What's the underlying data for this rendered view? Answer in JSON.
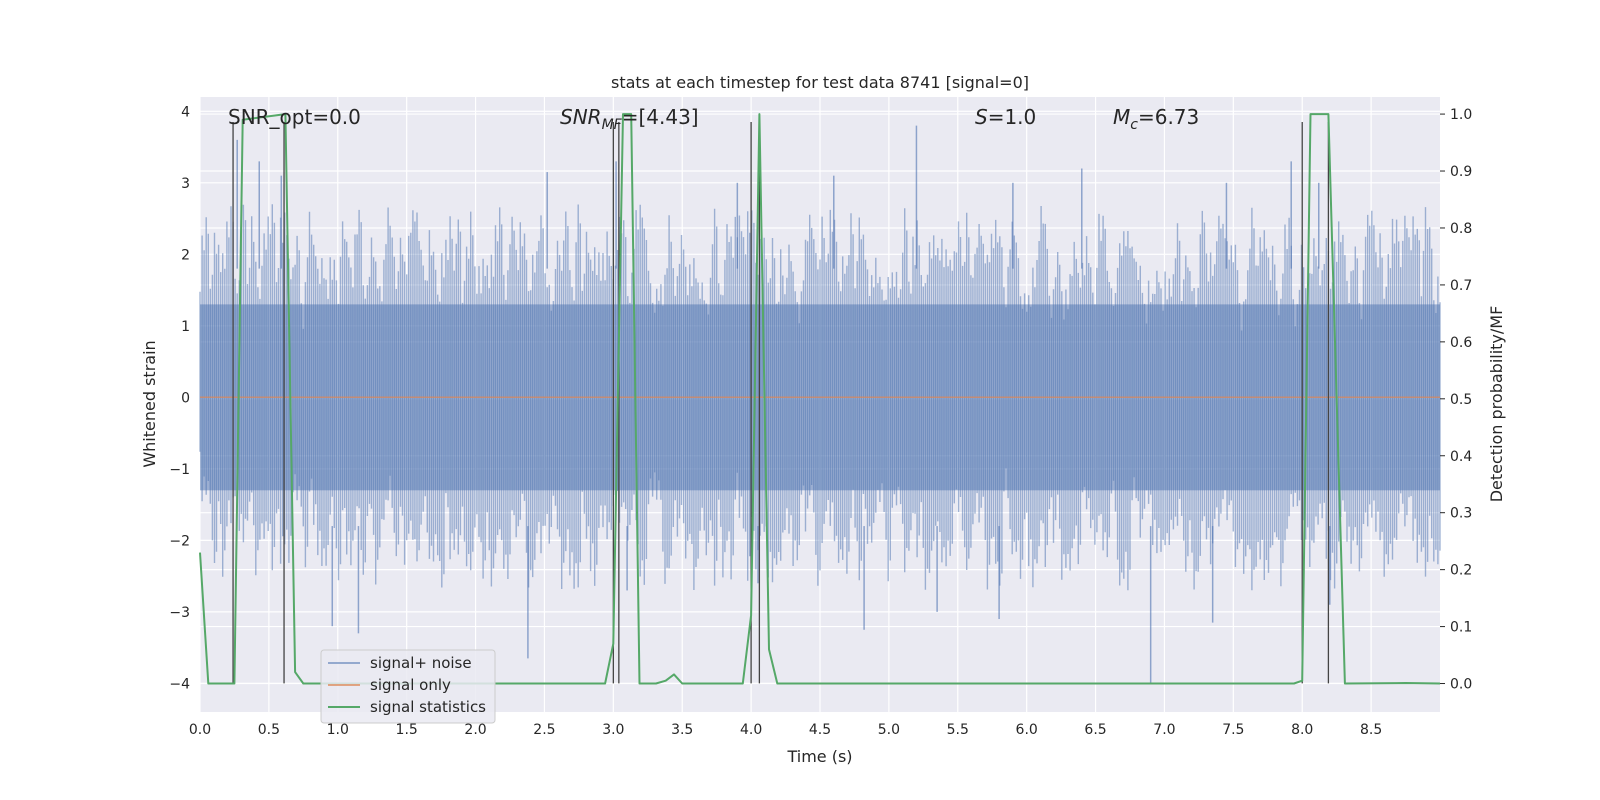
{
  "chart_data": {
    "type": "line",
    "title": "stats at each timestep for test data 8741 [signal=0]",
    "xlabel": "Time (s)",
    "ylabel": "Whitened strain",
    "y2label": "Detection probability/MF",
    "xlim": [
      0.0,
      9.0
    ],
    "ylim": [
      -4.4,
      4.2
    ],
    "y2lim": [
      -0.05,
      1.03
    ],
    "xticks": [
      "0.0",
      "0.5",
      "1.0",
      "1.5",
      "2.0",
      "2.5",
      "3.0",
      "3.5",
      "4.0",
      "4.5",
      "5.0",
      "5.5",
      "6.0",
      "6.5",
      "7.0",
      "7.5",
      "8.0",
      "8.5"
    ],
    "xtick_values": [
      0.0,
      0.5,
      1.0,
      1.5,
      2.0,
      2.5,
      3.0,
      3.5,
      4.0,
      4.5,
      5.0,
      5.5,
      6.0,
      6.5,
      7.0,
      7.5,
      8.0,
      8.5
    ],
    "yticks": [
      "−4",
      "−3",
      "−2",
      "−1",
      "0",
      "1",
      "2",
      "3",
      "4"
    ],
    "ytick_values": [
      -4,
      -3,
      -2,
      -1,
      0,
      1,
      2,
      3,
      4
    ],
    "y2ticks": [
      "0.0",
      "0.1",
      "0.2",
      "0.3",
      "0.4",
      "0.5",
      "0.6",
      "0.7",
      "0.8",
      "0.9",
      "1.0"
    ],
    "y2tick_values": [
      0.0,
      0.1,
      0.2,
      0.3,
      0.4,
      0.5,
      0.6,
      0.7,
      0.8,
      0.9,
      1.0
    ],
    "annotations": {
      "snr_opt": "SNR_opt=0.0",
      "snr_mf_name": "SNR",
      "snr_mf_sub": "MF",
      "snr_mf_value": "=[4.43]",
      "s_name": "S",
      "s_value": "=1.0",
      "mc_name": "M",
      "mc_sub": "c",
      "mc_value": "=6.73"
    },
    "legend": {
      "position": "lower-left",
      "entries": [
        "signal+ noise",
        "signal only",
        "signal statistics"
      ]
    },
    "series": [
      {
        "name": "signal+ noise",
        "color": "#4c72b0",
        "axis": "left",
        "note": "dense whitened strain noise; per-bin envelope (min/max) over 0–9 s",
        "bins": 300,
        "baseline_range": [
          -2.0,
          2.0
        ],
        "outliers": [
          {
            "x": 0.27,
            "y": 3.6
          },
          {
            "x": 0.43,
            "y": 3.3
          },
          {
            "x": 0.59,
            "y": 3.1
          },
          {
            "x": 0.96,
            "y": -3.2
          },
          {
            "x": 1.15,
            "y": -3.3
          },
          {
            "x": 2.38,
            "y": -3.65
          },
          {
            "x": 2.52,
            "y": 3.15
          },
          {
            "x": 3.02,
            "y": 3.3
          },
          {
            "x": 3.1,
            "y": -2.7
          },
          {
            "x": 3.9,
            "y": 3.0
          },
          {
            "x": 4.05,
            "y": -2.6
          },
          {
            "x": 4.6,
            "y": 3.1
          },
          {
            "x": 4.82,
            "y": -3.25
          },
          {
            "x": 5.2,
            "y": 3.8
          },
          {
            "x": 5.35,
            "y": -3.0
          },
          {
            "x": 5.8,
            "y": -3.1
          },
          {
            "x": 5.9,
            "y": 3.0
          },
          {
            "x": 6.4,
            "y": 3.2
          },
          {
            "x": 6.9,
            "y": -4.0
          },
          {
            "x": 7.35,
            "y": -3.15
          },
          {
            "x": 7.45,
            "y": 3.0
          },
          {
            "x": 7.92,
            "y": 3.3
          },
          {
            "x": 8.12,
            "y": 3.0
          },
          {
            "x": 8.2,
            "y": -2.9
          }
        ]
      },
      {
        "name": "signal only",
        "color": "#dd8452",
        "axis": "left",
        "x": [
          0.0,
          9.0
        ],
        "y": [
          0.0,
          0.0
        ]
      },
      {
        "name": "signal statistics",
        "color": "#55a868",
        "axis": "right",
        "x": [
          0.0,
          0.06,
          0.25,
          0.31,
          0.62,
          0.69,
          0.75,
          2.94,
          3.0,
          3.07,
          3.13,
          3.19,
          3.31,
          3.38,
          3.44,
          3.5,
          3.94,
          4.0,
          4.06,
          4.13,
          4.19,
          7.94,
          8.0,
          8.06,
          8.19,
          8.31,
          8.75,
          9.0
        ],
        "y": [
          0.23,
          0.0,
          0.0,
          0.99,
          1.0,
          0.02,
          0.0,
          0.0,
          0.07,
          1.0,
          1.0,
          0.0,
          0.0,
          0.005,
          0.016,
          0.0,
          0.0,
          0.12,
          1.0,
          0.06,
          0.0,
          0.0,
          0.005,
          1.0,
          1.0,
          0.0,
          0.001,
          0.0
        ]
      }
    ],
    "markers": {
      "name": "detection boundaries",
      "color": "#444444",
      "x": [
        0.24,
        0.61,
        3.0,
        3.04,
        4.0,
        4.06,
        8.0,
        8.19
      ]
    }
  }
}
